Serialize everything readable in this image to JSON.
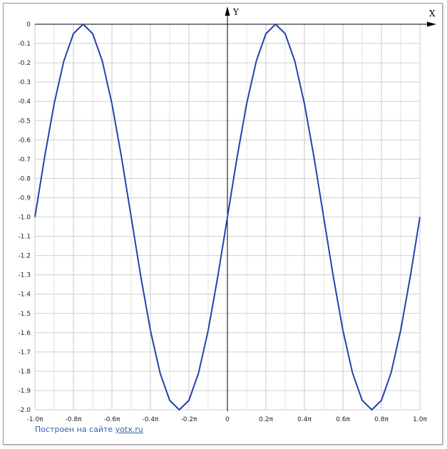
{
  "chart_data": {
    "type": "line",
    "x_axis_name": "X",
    "y_axis_name": "Y",
    "xlim": [
      -1.0,
      1.0
    ],
    "ylim": [
      -2.0,
      0
    ],
    "x_unit": "π",
    "grid": true,
    "x_ticks": [
      {
        "value": -1.0,
        "label": "-1.0π"
      },
      {
        "value": -0.8,
        "label": "-0.8π"
      },
      {
        "value": -0.6,
        "label": "-0.6π"
      },
      {
        "value": -0.4,
        "label": "-0.4π"
      },
      {
        "value": -0.2,
        "label": "-0.2π"
      },
      {
        "value": 0,
        "label": "0"
      },
      {
        "value": 0.2,
        "label": "0.2π"
      },
      {
        "value": 0.4,
        "label": "0.4π"
      },
      {
        "value": 0.6,
        "label": "0.6π"
      },
      {
        "value": 0.8,
        "label": "0.8π"
      },
      {
        "value": 1.0,
        "label": "1.0π"
      }
    ],
    "y_ticks": [
      {
        "value": 0,
        "label": "0"
      },
      {
        "value": -0.1,
        "label": "-0.1"
      },
      {
        "value": -0.2,
        "label": "-0.2"
      },
      {
        "value": -0.3,
        "label": "-0.3"
      },
      {
        "value": -0.4,
        "label": "-0.4"
      },
      {
        "value": -0.5,
        "label": "-0.5"
      },
      {
        "value": -0.6,
        "label": "-0.6"
      },
      {
        "value": -0.7,
        "label": "-0.7"
      },
      {
        "value": -0.8,
        "label": "-0.8"
      },
      {
        "value": -0.9,
        "label": "-0.9"
      },
      {
        "value": -1.0,
        "label": "-1.0"
      },
      {
        "value": -1.1,
        "label": "-1.1"
      },
      {
        "value": -1.2,
        "label": "-1.2"
      },
      {
        "value": -1.3,
        "label": "-1.3"
      },
      {
        "value": -1.4,
        "label": "-1.4"
      },
      {
        "value": -1.5,
        "label": "-1.5"
      },
      {
        "value": -1.6,
        "label": "-1.6"
      },
      {
        "value": -1.7,
        "label": "-1.7"
      },
      {
        "value": -1.8,
        "label": "-1.8"
      },
      {
        "value": -1.9,
        "label": "-1.9"
      },
      {
        "value": -2.0,
        "label": "-2.0"
      }
    ],
    "series": [
      {
        "color": "#2244aa",
        "x": [
          -1.0,
          -0.95,
          -0.9,
          -0.85,
          -0.8,
          -0.75,
          -0.7,
          -0.65,
          -0.6,
          -0.55,
          -0.5,
          -0.45,
          -0.4,
          -0.35,
          -0.3,
          -0.25,
          -0.2,
          -0.15,
          -0.1,
          -0.05,
          0,
          0.05,
          0.1,
          0.15,
          0.2,
          0.25,
          0.3,
          0.35,
          0.4,
          0.45,
          0.5,
          0.55,
          0.6,
          0.65,
          0.7,
          0.75,
          0.8,
          0.85,
          0.9,
          0.95,
          1.0
        ],
        "y": [
          -1.0,
          -0.691,
          -0.412,
          -0.191,
          -0.049,
          0.0,
          -0.049,
          -0.191,
          -0.412,
          -0.691,
          -1.0,
          -1.309,
          -1.588,
          -1.809,
          -1.951,
          -2.0,
          -1.951,
          -1.809,
          -1.588,
          -1.309,
          -1.0,
          -0.691,
          -0.412,
          -0.191,
          -0.049,
          0.0,
          -0.049,
          -0.191,
          -0.412,
          -0.691,
          -1.0,
          -1.309,
          -1.588,
          -1.809,
          -1.951,
          -2.0,
          -1.951,
          -1.809,
          -1.588,
          -1.309,
          -1.0
        ]
      }
    ]
  },
  "credit": {
    "text": "Построен на сайте ",
    "link_text": "yotx.ru"
  }
}
